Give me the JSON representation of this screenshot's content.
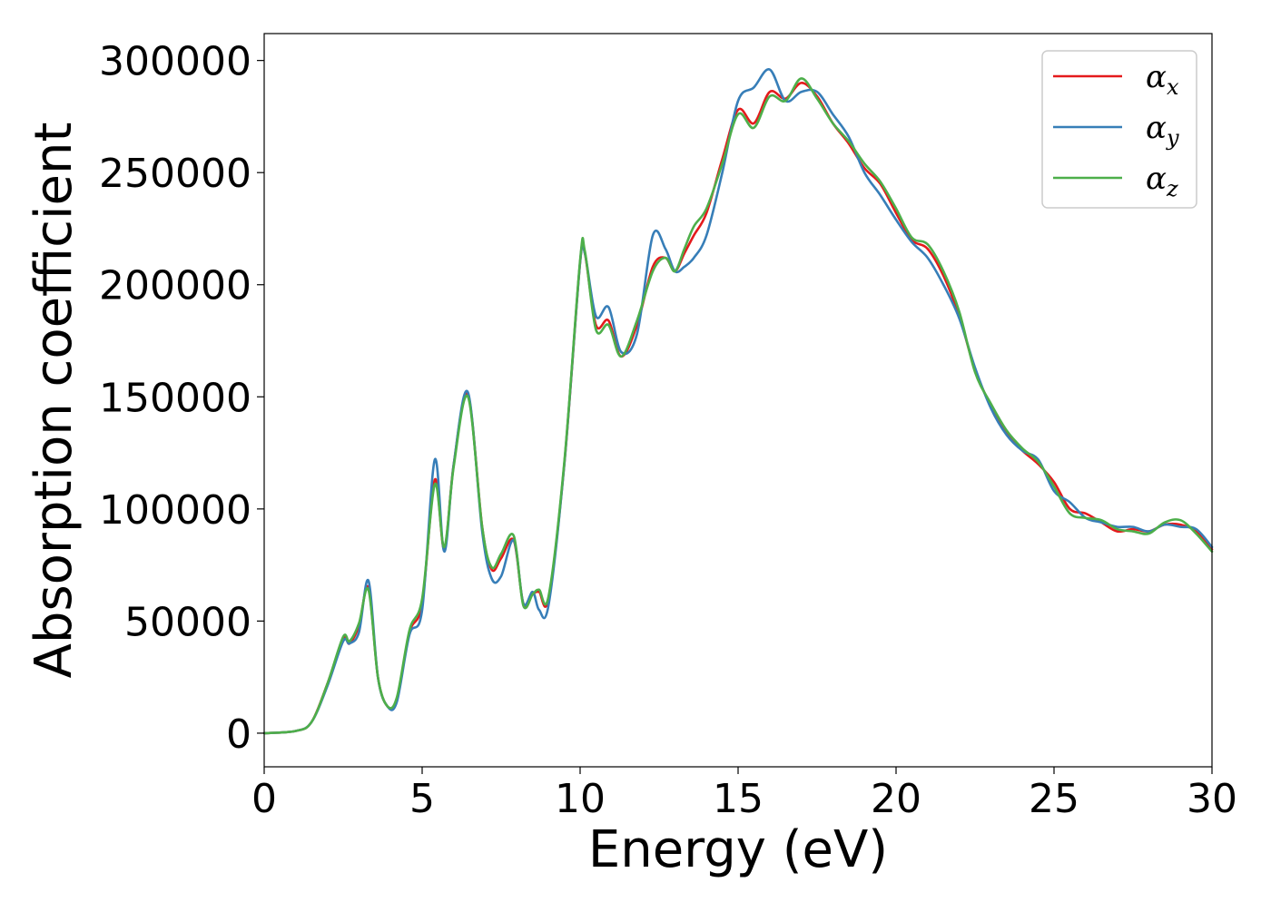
{
  "chart_data": {
    "type": "line",
    "title": "",
    "xlabel": "Energy (eV)",
    "ylabel": "Absorption coefficient",
    "xlim": [
      0,
      30
    ],
    "ylim": [
      -15000,
      312000
    ],
    "xticks": [
      0,
      5,
      10,
      15,
      20,
      25,
      30
    ],
    "xtick_labels": [
      "0",
      "5",
      "10",
      "15",
      "20",
      "25",
      "30"
    ],
    "yticks": [
      0,
      50000,
      100000,
      150000,
      200000,
      250000,
      300000
    ],
    "ytick_labels": [
      "0",
      "50000",
      "100000",
      "150000",
      "200000",
      "250000",
      "300000"
    ],
    "grid": false,
    "legend_position": "top-right",
    "series": [
      {
        "name": "α_x",
        "legend_symbol": "α",
        "legend_subscript": "x",
        "color": "#e41a1c",
        "x": [
          0,
          1,
          1.5,
          2,
          2.5,
          2.7,
          3,
          3.3,
          3.6,
          3.9,
          4.2,
          4.6,
          5,
          5.4,
          5.7,
          6,
          6.45,
          6.9,
          7.2,
          7.5,
          7.9,
          8.2,
          8.5,
          8.7,
          9,
          9.5,
          10,
          10.15,
          10.5,
          10.9,
          11.3,
          11.8,
          12.3,
          12.7,
          13,
          13.3,
          13.6,
          14,
          14.5,
          15,
          15.5,
          16,
          16.5,
          17,
          17.5,
          18,
          18.5,
          19,
          19.5,
          20,
          20.5,
          21,
          21.5,
          22,
          22.5,
          23,
          23.5,
          24,
          24.5,
          25,
          25.5,
          26,
          26.5,
          27,
          27.5,
          28,
          28.5,
          29,
          29.5,
          30
        ],
        "y": [
          0,
          1000,
          5000,
          22000,
          42000,
          40000,
          48000,
          65000,
          25000,
          12000,
          15000,
          45000,
          58000,
          113000,
          82000,
          120000,
          151000,
          92000,
          73000,
          78000,
          86000,
          58000,
          62000,
          63000,
          60000,
          120000,
          210000,
          214000,
          182000,
          184000,
          168000,
          182000,
          208000,
          212000,
          206000,
          214000,
          222000,
          232000,
          256000,
          278000,
          272000,
          286000,
          283000,
          290000,
          284000,
          272000,
          263000,
          252000,
          245000,
          232000,
          220000,
          216000,
          204000,
          186000,
          162000,
          146000,
          134000,
          126000,
          120000,
          112000,
          100000,
          98000,
          94000,
          90000,
          91000,
          90000,
          93000,
          93000,
          90000,
          82000
        ]
      },
      {
        "name": "α_y",
        "legend_symbol": "α",
        "legend_subscript": "y",
        "color": "#377eb8",
        "x": [
          0,
          1,
          1.5,
          2,
          2.5,
          2.7,
          3,
          3.3,
          3.6,
          3.9,
          4.2,
          4.6,
          5,
          5.4,
          5.7,
          6,
          6.45,
          6.9,
          7.2,
          7.5,
          7.9,
          8.2,
          8.5,
          8.7,
          9,
          9.5,
          10,
          10.15,
          10.5,
          10.9,
          11.3,
          11.8,
          12.3,
          12.7,
          13,
          13.3,
          13.6,
          14,
          14.5,
          15,
          15.5,
          16,
          16.5,
          17,
          17.5,
          18,
          18.5,
          19,
          19.5,
          20,
          20.5,
          21,
          21.5,
          22,
          22.5,
          23,
          23.5,
          24,
          24.5,
          25,
          25.5,
          26,
          26.5,
          27,
          27.5,
          28,
          28.5,
          29,
          29.5,
          30
        ],
        "y": [
          0,
          1000,
          5000,
          21000,
          41000,
          40000,
          45000,
          68000,
          25000,
          12000,
          14000,
          44000,
          55000,
          122000,
          81000,
          120000,
          152000,
          90000,
          69000,
          70000,
          86000,
          58000,
          63000,
          55000,
          57000,
          120000,
          210000,
          214000,
          186000,
          190000,
          170000,
          178000,
          222000,
          216000,
          206000,
          208000,
          212000,
          222000,
          250000,
          282000,
          288000,
          296000,
          282000,
          286000,
          286000,
          276000,
          266000,
          250000,
          240000,
          229000,
          219000,
          212000,
          200000,
          185000,
          163000,
          145000,
          133000,
          126000,
          122000,
          108000,
          103000,
          96000,
          94000,
          92000,
          92000,
          90000,
          93000,
          92000,
          91000,
          83000
        ]
      },
      {
        "name": "α_z",
        "legend_symbol": "α",
        "legend_subscript": "z",
        "color": "#4daf4a",
        "x": [
          0,
          1,
          1.5,
          2,
          2.5,
          2.7,
          3,
          3.3,
          3.6,
          3.9,
          4.2,
          4.6,
          5,
          5.4,
          5.7,
          6,
          6.45,
          6.9,
          7.2,
          7.5,
          7.9,
          8.2,
          8.5,
          8.7,
          9,
          9.5,
          10,
          10.15,
          10.5,
          10.9,
          11.3,
          11.8,
          12.3,
          12.7,
          13,
          13.3,
          13.6,
          14,
          14.5,
          15,
          15.5,
          16,
          16.5,
          17,
          17.5,
          18,
          18.5,
          19,
          19.5,
          20,
          20.5,
          21,
          21.5,
          22,
          22.5,
          23,
          23.5,
          24,
          24.5,
          25,
          25.5,
          26,
          26.5,
          27,
          27.5,
          28,
          28.5,
          29,
          29.5,
          30
        ],
        "y": [
          0,
          1000,
          5000,
          22000,
          43000,
          41000,
          49000,
          64000,
          25000,
          12000,
          16000,
          46000,
          60000,
          111000,
          83000,
          119000,
          150000,
          92000,
          74000,
          80000,
          88000,
          57000,
          62000,
          64000,
          61000,
          121000,
          211000,
          215000,
          180000,
          182000,
          168000,
          184000,
          206000,
          212000,
          206000,
          216000,
          226000,
          234000,
          254000,
          276000,
          270000,
          284000,
          282000,
          292000,
          283000,
          272000,
          264000,
          254000,
          246000,
          234000,
          221000,
          218000,
          206000,
          188000,
          161000,
          147000,
          135000,
          127000,
          121000,
          110000,
          98000,
          96000,
          95000,
          91000,
          90000,
          89000,
          94000,
          95000,
          89000,
          81000
        ]
      }
    ]
  }
}
